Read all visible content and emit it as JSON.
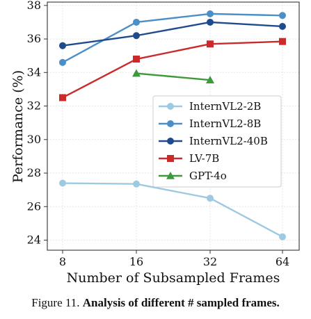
{
  "chart_data": {
    "type": "line",
    "xlabel": "Number of Subsampled Frames",
    "ylabel": "Performance (%)",
    "x_scale": "log2",
    "x": [
      8,
      16,
      32,
      64
    ],
    "x_tick_labels": [
      "8",
      "16",
      "32",
      "64"
    ],
    "ylim": [
      23.4,
      38.2
    ],
    "y_ticks": [
      24,
      26,
      28,
      30,
      32,
      34,
      36,
      38
    ],
    "grid": true,
    "legend_position": "center-right",
    "series": [
      {
        "name": "InternVL2-2B",
        "color": "#9ecae1",
        "marker": "circle",
        "x": [
          8,
          16,
          32,
          64
        ],
        "values": [
          27.4,
          27.35,
          26.5,
          24.2
        ]
      },
      {
        "name": "InternVL2-8B",
        "color": "#4a8fc7",
        "marker": "circle",
        "x": [
          8,
          16,
          32,
          64
        ],
        "values": [
          34.6,
          37.0,
          37.5,
          37.4
        ]
      },
      {
        "name": "InternVL2-40B",
        "color": "#1f4a8e",
        "marker": "circle",
        "x": [
          8,
          16,
          32,
          64
        ],
        "values": [
          35.6,
          36.2,
          37.0,
          36.75
        ]
      },
      {
        "name": "LV-7B",
        "color": "#cc2a2a",
        "marker": "square",
        "x": [
          8,
          16,
          32,
          64
        ],
        "values": [
          32.5,
          34.8,
          35.7,
          35.85
        ]
      },
      {
        "name": "GPT-4o",
        "color": "#3d9a3a",
        "marker": "triangle",
        "x": [
          16,
          32
        ],
        "values": [
          33.95,
          33.55
        ]
      }
    ]
  },
  "caption": {
    "prefix": "Figure 11. ",
    "bold": "Analysis of different # sampled frames."
  }
}
